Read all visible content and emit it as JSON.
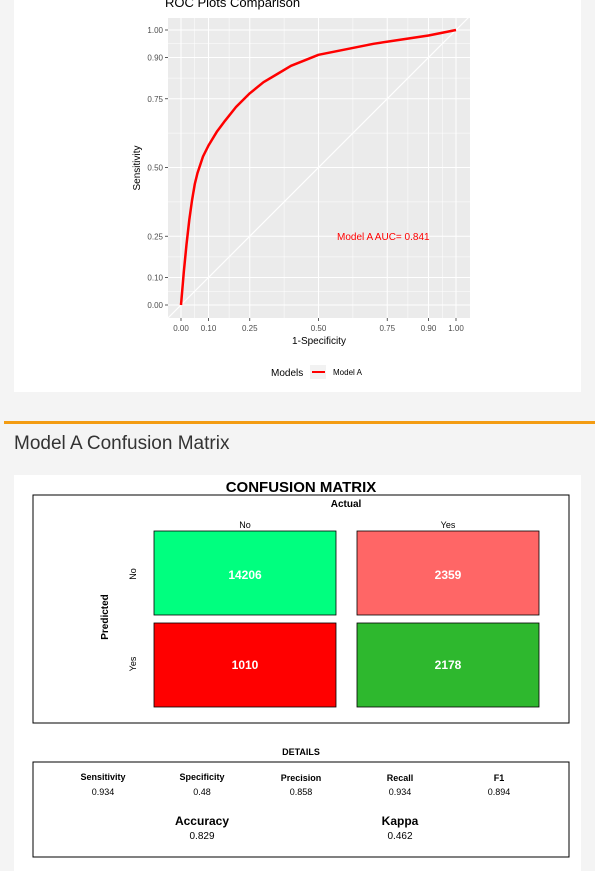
{
  "roc": {
    "title": "ROC Plots Comparison",
    "xlabel": "1-Specificity",
    "ylabel": "Sensitivity",
    "legend_title": "Models",
    "annotation": "Model A AUC= 0.841",
    "colors": {
      "curve": "#ff0000",
      "panel_bg": "#ebebeb",
      "grid": "#ffffff",
      "diag": "#ffffff"
    }
  },
  "chart_data": {
    "type": "line",
    "title": "ROC Plots Comparison",
    "xlabel": "1-Specificity",
    "ylabel": "Sensitivity",
    "xlim": [
      0,
      1
    ],
    "ylim": [
      0,
      1
    ],
    "x_ticks": [
      "0.00",
      "0.10",
      "0.25",
      "0.50",
      "0.75",
      "0.90",
      "1.00"
    ],
    "y_ticks": [
      "0.00",
      "0.10",
      "0.25",
      "0.50",
      "0.75",
      "0.90",
      "1.00"
    ],
    "legend": "bottom",
    "grid": true,
    "series": [
      {
        "name": "Model A",
        "color": "#ff0000",
        "x": [
          0,
          0.01,
          0.02,
          0.03,
          0.04,
          0.05,
          0.06,
          0.08,
          0.1,
          0.13,
          0.16,
          0.2,
          0.25,
          0.3,
          0.35,
          0.4,
          0.45,
          0.5,
          0.6,
          0.7,
          0.8,
          0.9,
          1.0
        ],
        "y": [
          0,
          0.12,
          0.22,
          0.31,
          0.38,
          0.44,
          0.48,
          0.54,
          0.58,
          0.63,
          0.67,
          0.72,
          0.77,
          0.81,
          0.84,
          0.87,
          0.89,
          0.91,
          0.93,
          0.95,
          0.965,
          0.98,
          1.0
        ]
      }
    ]
  },
  "section": {
    "title": "Model A Confusion Matrix"
  },
  "confusion": {
    "title": "CONFUSION MATRIX",
    "actual_label": "Actual",
    "predicted_label": "Predicted",
    "col_labels": [
      "No",
      "Yes"
    ],
    "row_labels": [
      "No",
      "Yes"
    ],
    "cells": [
      {
        "value": "14206",
        "color": "#00ff7f"
      },
      {
        "value": "2359",
        "color": "#ff6666"
      },
      {
        "value": "1010",
        "color": "#ff0000"
      },
      {
        "value": "2178",
        "color": "#2eb82e"
      }
    ]
  },
  "details": {
    "title": "DETAILS",
    "metrics": [
      {
        "label": "Sensitivity",
        "value": "0.934"
      },
      {
        "label": "Specificity",
        "value": "0.48"
      },
      {
        "label": "Precision",
        "value": "0.858"
      },
      {
        "label": "Recall",
        "value": "0.934"
      },
      {
        "label": "F1",
        "value": "0.894"
      }
    ],
    "summary": [
      {
        "label": "Accuracy",
        "value": "0.829"
      },
      {
        "label": "Kappa",
        "value": "0.462"
      }
    ]
  }
}
